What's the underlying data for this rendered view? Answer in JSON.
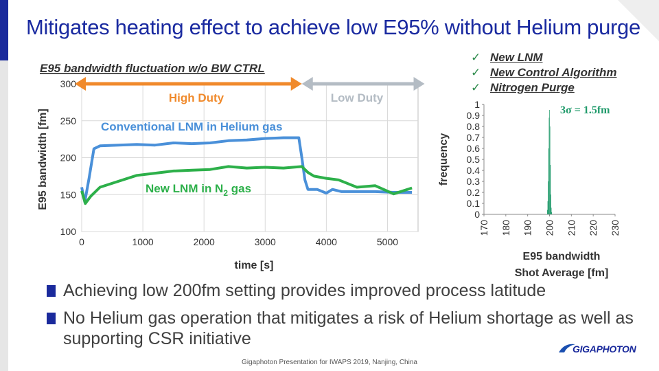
{
  "slide": {
    "title": "Mitigates heating effect to achieve low E95% without Helium purge",
    "bullets": [
      "Achieving low 200fm setting provides improved process latitude",
      "No Helium gas operation that mitigates a risk of Helium shortage as well as supporting CSR initiative"
    ],
    "footer": "Gigaphoton Presentation for IWAPS 2019, Nanjing, China",
    "logo_text": "GIGAPHOTON",
    "checklist": [
      "New LNM",
      "New Control Algorithm",
      "Nitrogen Purge"
    ],
    "check_symbol": "✓"
  },
  "colors": {
    "accent": "#1a2a9c",
    "conventional": "#4a90d9",
    "new_lnm": "#2db04a",
    "high_duty": "#f08a2c",
    "low_duty": "#b4bcc4",
    "histogram": "#1f9a6a"
  },
  "chart_data": [
    {
      "type": "line",
      "title": "E95 bandwidth fluctuation w/o BW CTRL",
      "xlabel": "time [s]",
      "ylabel": "E95 bandwidth [fm]",
      "xlim": [
        0,
        5500
      ],
      "ylim": [
        100,
        300
      ],
      "xticks": [
        0,
        1000,
        2000,
        3000,
        4000,
        5000
      ],
      "yticks": [
        100,
        150,
        200,
        250,
        300
      ],
      "grid": true,
      "annotations": {
        "high_duty": "High Duty",
        "low_duty": "Low Duty"
      },
      "high_duty_range": [
        0,
        3600
      ],
      "low_duty_range": [
        3600,
        5450
      ],
      "series": [
        {
          "name": "Conventional LNM in Helium gas",
          "x": [
            0,
            50,
            120,
            200,
            300,
            600,
            900,
            1200,
            1500,
            1800,
            2100,
            2400,
            2700,
            3000,
            3300,
            3550,
            3600,
            3650,
            3700,
            3850,
            4000,
            4100,
            4250,
            4500,
            4800,
            5100,
            5400
          ],
          "y": [
            160,
            140,
            172,
            212,
            216,
            217,
            218,
            217,
            220,
            219,
            220,
            223,
            224,
            226,
            227,
            227,
            200,
            170,
            157,
            157,
            152,
            157,
            154,
            154,
            154,
            153,
            153
          ]
        },
        {
          "name": "New LNM in N2 gas",
          "label_main": "New LNM in N",
          "label_sub": "2",
          "label_tail": " gas",
          "x": [
            0,
            60,
            150,
            300,
            600,
            900,
            1200,
            1500,
            1800,
            2100,
            2400,
            2700,
            3000,
            3300,
            3600,
            3700,
            3800,
            4000,
            4200,
            4500,
            4800,
            5100,
            5400
          ],
          "y": [
            155,
            138,
            148,
            160,
            168,
            176,
            179,
            182,
            183,
            184,
            188,
            186,
            187,
            186,
            188,
            180,
            175,
            172,
            170,
            160,
            162,
            151,
            159
          ]
        }
      ]
    },
    {
      "type": "bar",
      "title": "",
      "xlabel": "E95 bandwidth",
      "xlabel2": "Shot Average [fm]",
      "ylabel": "frequency",
      "annotation": "3σ = 1.5fm",
      "xlim": [
        170,
        230
      ],
      "ylim": [
        0,
        1
      ],
      "xticks": [
        170,
        180,
        190,
        200,
        210,
        220,
        230
      ],
      "yticks": [
        0,
        0.1,
        0.2,
        0.3,
        0.4,
        0.5,
        0.6,
        0.7,
        0.8,
        0.9,
        1
      ],
      "grid": false,
      "x": [
        199.0,
        199.2,
        199.4,
        199.6,
        199.8,
        200.0,
        200.2,
        200.4,
        200.6,
        200.8,
        201.0
      ],
      "values": [
        0.04,
        0.12,
        0.3,
        0.6,
        0.88,
        0.95,
        0.8,
        0.45,
        0.18,
        0.06,
        0.02
      ]
    }
  ]
}
